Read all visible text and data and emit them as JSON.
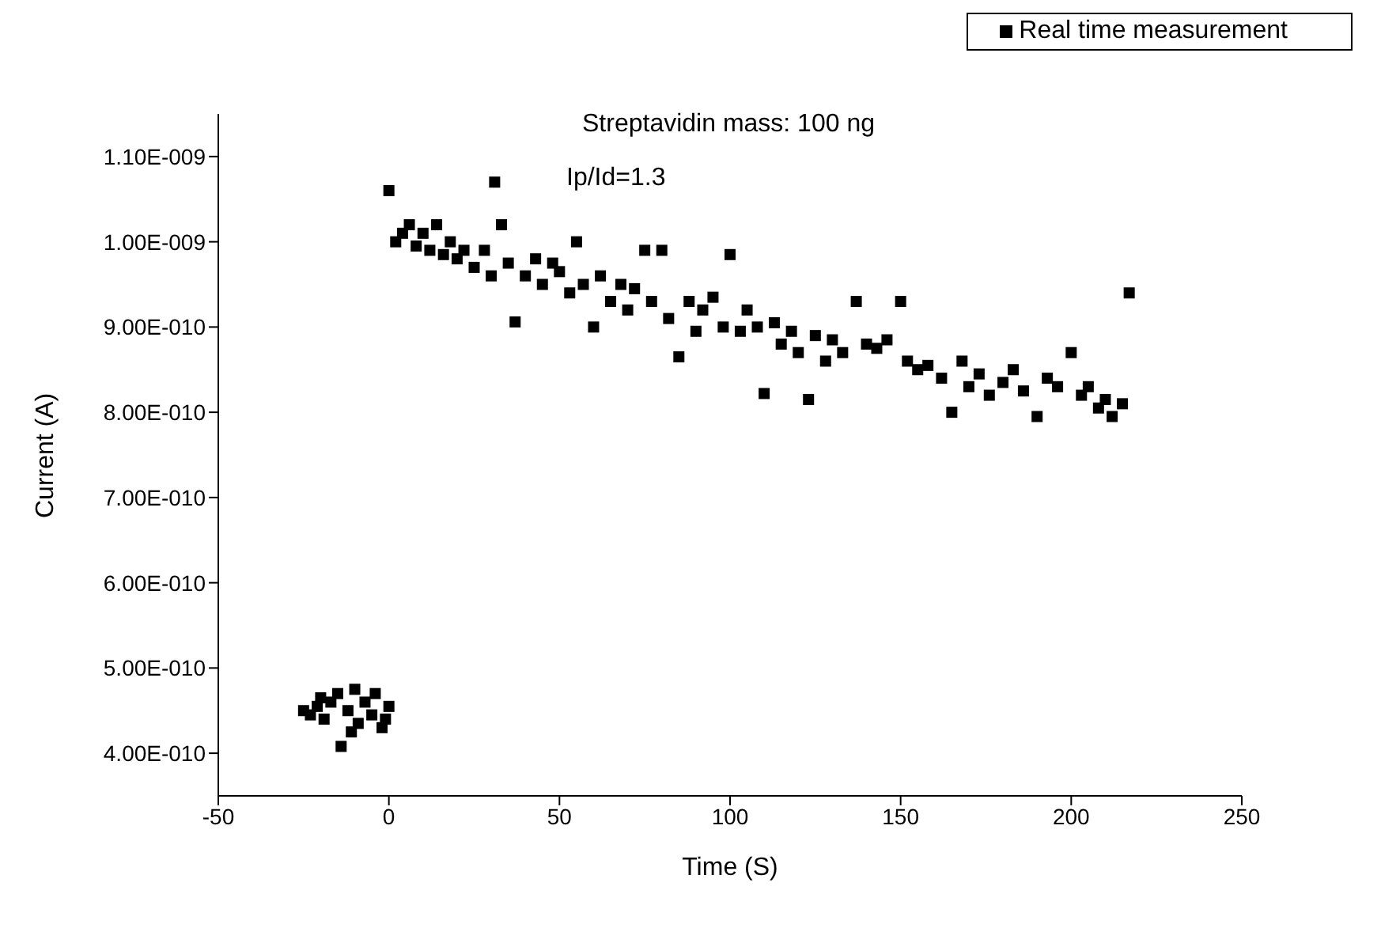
{
  "chart_data": {
    "type": "scatter",
    "xlabel": "Time (S)",
    "ylabel": "Current (A)",
    "xlim": [
      -50,
      250
    ],
    "xticks": [
      -50,
      0,
      50,
      100,
      150,
      200,
      250
    ],
    "ylim": [
      3.5e-10,
      1.15e-09
    ],
    "yticks": [
      {
        "value": 4e-10,
        "label": "4.00E-010"
      },
      {
        "value": 5e-10,
        "label": "5.00E-010"
      },
      {
        "value": 6e-10,
        "label": "6.00E-010"
      },
      {
        "value": 7e-10,
        "label": "7.00E-010"
      },
      {
        "value": 8e-10,
        "label": "8.00E-010"
      },
      {
        "value": 9e-10,
        "label": "9.00E-010"
      },
      {
        "value": 1e-09,
        "label": "1.00E-009"
      },
      {
        "value": 1.1e-09,
        "label": "1.10E-009"
      }
    ],
    "legend": "top right",
    "marker": "square",
    "grid": false,
    "annotations": [
      "Streptavidin mass: 100 ng",
      "Ip/Id=1.3"
    ],
    "series": [
      {
        "name": "Real time measurement",
        "color": "#000000",
        "x": [
          -25,
          -23,
          -21,
          -20,
          -19,
          -17,
          -15,
          -14,
          -12,
          -11,
          -10,
          -9,
          -7,
          -5,
          -4,
          -2,
          -1,
          0,
          0,
          2,
          4,
          6,
          8,
          10,
          12,
          14,
          16,
          18,
          20,
          22,
          25,
          28,
          30,
          31,
          33,
          35,
          37,
          40,
          43,
          45,
          48,
          50,
          53,
          55,
          57,
          60,
          62,
          65,
          68,
          70,
          72,
          75,
          77,
          80,
          82,
          85,
          88,
          90,
          92,
          95,
          98,
          100,
          103,
          105,
          108,
          110,
          113,
          115,
          118,
          120,
          123,
          125,
          128,
          130,
          133,
          137,
          140,
          143,
          146,
          150,
          152,
          155,
          158,
          162,
          165,
          168,
          170,
          173,
          176,
          180,
          183,
          186,
          190,
          193,
          196,
          200,
          203,
          205,
          208,
          210,
          212,
          215,
          217
        ],
        "values": [
          4.5e-10,
          4.45e-10,
          4.55e-10,
          4.65e-10,
          4.4e-10,
          4.6e-10,
          4.7e-10,
          4.08e-10,
          4.5e-10,
          4.25e-10,
          4.75e-10,
          4.35e-10,
          4.6e-10,
          4.45e-10,
          4.7e-10,
          4.3e-10,
          4.4e-10,
          4.55e-10,
          1.06e-09,
          1e-09,
          1.01e-09,
          1.02e-09,
          9.95e-10,
          1.01e-09,
          9.9e-10,
          1.02e-09,
          9.85e-10,
          1e-09,
          9.8e-10,
          9.9e-10,
          9.7e-10,
          9.9e-10,
          9.6e-10,
          1.07e-09,
          1.02e-09,
          9.75e-10,
          9.06e-10,
          9.6e-10,
          9.8e-10,
          9.5e-10,
          9.75e-10,
          9.65e-10,
          9.4e-10,
          1e-09,
          9.5e-10,
          9e-10,
          9.6e-10,
          9.3e-10,
          9.5e-10,
          9.2e-10,
          9.45e-10,
          9.9e-10,
          9.3e-10,
          9.9e-10,
          9.1e-10,
          8.65e-10,
          9.3e-10,
          8.95e-10,
          9.2e-10,
          9.35e-10,
          9e-10,
          9.85e-10,
          8.95e-10,
          9.2e-10,
          9e-10,
          8.22e-10,
          9.05e-10,
          8.8e-10,
          8.95e-10,
          8.7e-10,
          8.15e-10,
          8.9e-10,
          8.6e-10,
          8.85e-10,
          8.7e-10,
          9.3e-10,
          8.8e-10,
          8.75e-10,
          8.85e-10,
          9.3e-10,
          8.6e-10,
          8.5e-10,
          8.55e-10,
          8.4e-10,
          8e-10,
          8.6e-10,
          8.3e-10,
          8.45e-10,
          8.2e-10,
          8.35e-10,
          8.5e-10,
          8.25e-10,
          7.95e-10,
          8.4e-10,
          8.3e-10,
          8.7e-10,
          8.2e-10,
          8.3e-10,
          8.05e-10,
          8.15e-10,
          7.95e-10,
          8.1e-10,
          9.4e-10
        ]
      }
    ]
  }
}
